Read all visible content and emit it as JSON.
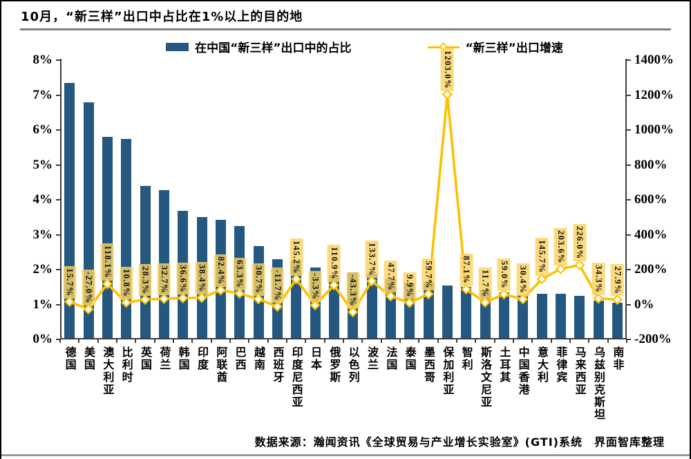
{
  "title": "10月，“新三样”出口中占比在1%以上的目的地",
  "legend": [
    {
      "label": "在中国“新三样”出口中的占比",
      "marker": "bar-swatch"
    },
    {
      "label": "“新三样”出口增速",
      "marker": "line-diamond"
    }
  ],
  "footer": {
    "source": "数据来源：瀚闻资讯《全球贸易与产业增长实验室》(GTI)系统　界面智库整理"
  },
  "colors": {
    "bar": "#255880",
    "line": "#FFC000",
    "marker_fill": "#FFFFFF",
    "label_bg": "rgba(250,211,100,0.82)",
    "axis": "#3c3c3c"
  },
  "chart_data": {
    "type": "bar",
    "subtype": "bar+line combo, dual y-axis",
    "title": "10月，“新三样”出口中占比在1%以上的目的地",
    "categories": [
      "德国",
      "美国",
      "澳大利亚",
      "比利时",
      "英国",
      "荷兰",
      "韩国",
      "印度",
      "阿联酋",
      "巴西",
      "越南",
      "西班牙",
      "印度尼西亚",
      "日本",
      "俄罗斯",
      "以色列",
      "波兰",
      "法国",
      "泰国",
      "墨西哥",
      "保加利亚",
      "智利",
      "斯洛文尼亚",
      "土耳其",
      "中国香港",
      "意大利",
      "菲律宾",
      "马来西亚",
      "乌兹别克斯坦",
      "南非"
    ],
    "series": [
      {
        "name": "在中国“新三样”出口中的占比",
        "type": "bar",
        "axis": "left",
        "unit": "%",
        "values": [
          7.35,
          6.8,
          5.8,
          5.75,
          4.4,
          4.28,
          3.68,
          3.5,
          3.42,
          3.24,
          2.68,
          2.3,
          2.25,
          2.05,
          1.85,
          1.92,
          1.88,
          1.75,
          1.62,
          1.65,
          1.55,
          1.5,
          1.42,
          1.35,
          1.27,
          1.3,
          1.3,
          1.25,
          1.1,
          1.05
        ]
      },
      {
        "name": "“新三样”出口增速",
        "type": "line",
        "axis": "right",
        "unit": "%",
        "values": [
          15.7,
          -27.0,
          118.1,
          10.8,
          28.3,
          32.7,
          36.6,
          38.4,
          82.4,
          63.3,
          30.7,
          -11.7,
          145.2,
          -3.3,
          110.9,
          -43.3,
          133.7,
          47.7,
          9.9,
          59.7,
          1203.0,
          87.1,
          11.7,
          59.0,
          30.4,
          145.7,
          203.6,
          226.0,
          34.3,
          27.9
        ],
        "labels": [
          "15.7%",
          "-27.0%",
          "118.1%",
          "10.8%",
          "28.3%",
          "32.7%",
          "36.6%",
          "38.4%",
          "82.4%",
          "63.3%",
          "30.7%",
          "-11.7%",
          "145.2%",
          "-3.3%",
          "110.9%",
          "-43.3%",
          "133.7%",
          "47.7%",
          "9.9%",
          "59.7%",
          "1203.0%",
          "87.1%",
          "11.7%",
          "59.0%",
          "30.4%",
          "145.7%",
          "203.6%",
          "226.0%",
          "34.3%",
          "27.9%"
        ]
      }
    ],
    "left_axis": {
      "min": 0,
      "max": 8,
      "step": 1,
      "ticks": [
        "0%",
        "1%",
        "2%",
        "3%",
        "4%",
        "5%",
        "6%",
        "7%",
        "8%"
      ]
    },
    "right_axis": {
      "min": -200,
      "max": 1400,
      "step": 200,
      "ticks": [
        "-200%",
        "0%",
        "200%",
        "400%",
        "600%",
        "800%",
        "1000%",
        "1200%",
        "1400%"
      ]
    },
    "grid": "off",
    "legend_position": "top"
  }
}
